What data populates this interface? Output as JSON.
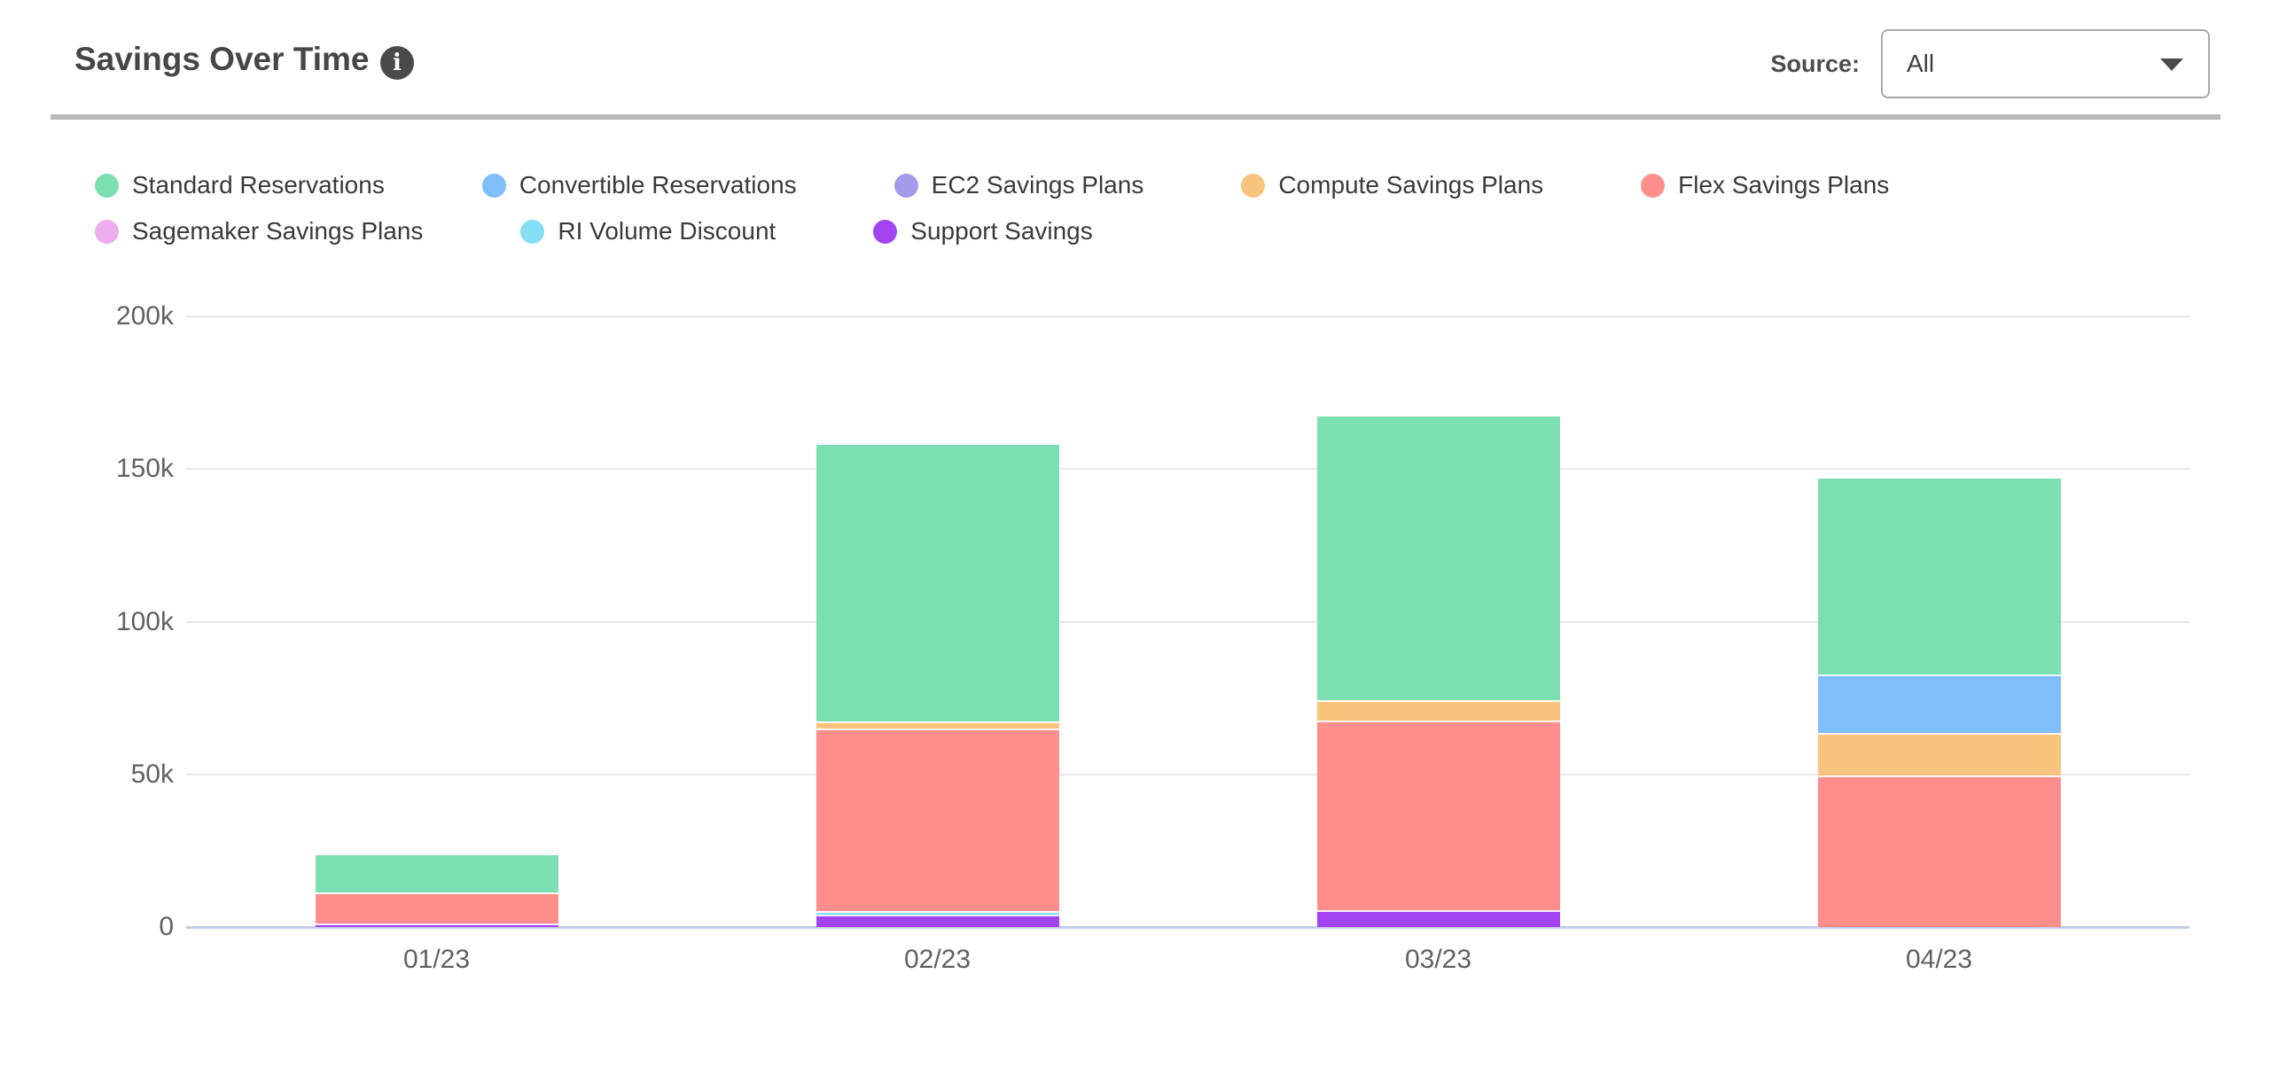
{
  "header": {
    "title": "Savings Over Time",
    "info_glyph": "i",
    "source_label": "Source:",
    "source_value": "All"
  },
  "chart_data": {
    "type": "bar",
    "stacked": true,
    "title": "Savings Over Time",
    "units": "USD (thousands)",
    "categories": [
      "01/23",
      "02/23",
      "03/23",
      "04/23"
    ],
    "ylim_k": [
      0,
      200
    ],
    "y_ticks": [
      {
        "label": "200k",
        "value_k": 200
      },
      {
        "label": "150k",
        "value_k": 150
      },
      {
        "label": "100k",
        "value_k": 100
      },
      {
        "label": "50k",
        "value_k": 50
      },
      {
        "label": "0",
        "value_k": 0
      }
    ],
    "grid": "horizontal",
    "legend_position": "top",
    "stack_order": "reverse-legend (Support Savings at bottom, Standard Reservations on top)",
    "series": [
      {
        "name": "Standard Reservations",
        "color": "#7CDFB1",
        "values_k": [
          12.2,
          90.6,
          92.9,
          64.1
        ]
      },
      {
        "name": "Convertible Reservations",
        "color": "#7FBDFB",
        "values_k": [
          0,
          0,
          0,
          19.2
        ]
      },
      {
        "name": "EC2 Savings Plans",
        "color": "#A49BEC",
        "values_k": [
          0,
          0,
          0,
          0
        ]
      },
      {
        "name": "Compute Savings Plans",
        "color": "#F9C47E",
        "values_k": [
          0,
          2.3,
          6.8,
          13.8
        ]
      },
      {
        "name": "Flex Savings Plans",
        "color": "#FF8E8C",
        "values_k": [
          9.9,
          59.9,
          62.1,
          49.7
        ]
      },
      {
        "name": "Sagemaker Savings Plans",
        "color": "#EFABF0",
        "values_k": [
          0,
          0,
          0,
          0
        ]
      },
      {
        "name": "RI Volume Discount",
        "color": "#85DEF5",
        "values_k": [
          0,
          1.1,
          0,
          0
        ]
      },
      {
        "name": "Support Savings",
        "color": "#A443F2",
        "values_k": [
          1.3,
          4.1,
          5.4,
          0
        ]
      }
    ],
    "totals_k": [
      23.4,
      158.0,
      167.2,
      146.8
    ]
  },
  "colors": {
    "axis_line": "#C4CDE7",
    "gridline": "#E7E7E7",
    "tick_text": "#616161",
    "header_rule": "#B9B9B9",
    "info_badge": "#4A4A4A"
  }
}
